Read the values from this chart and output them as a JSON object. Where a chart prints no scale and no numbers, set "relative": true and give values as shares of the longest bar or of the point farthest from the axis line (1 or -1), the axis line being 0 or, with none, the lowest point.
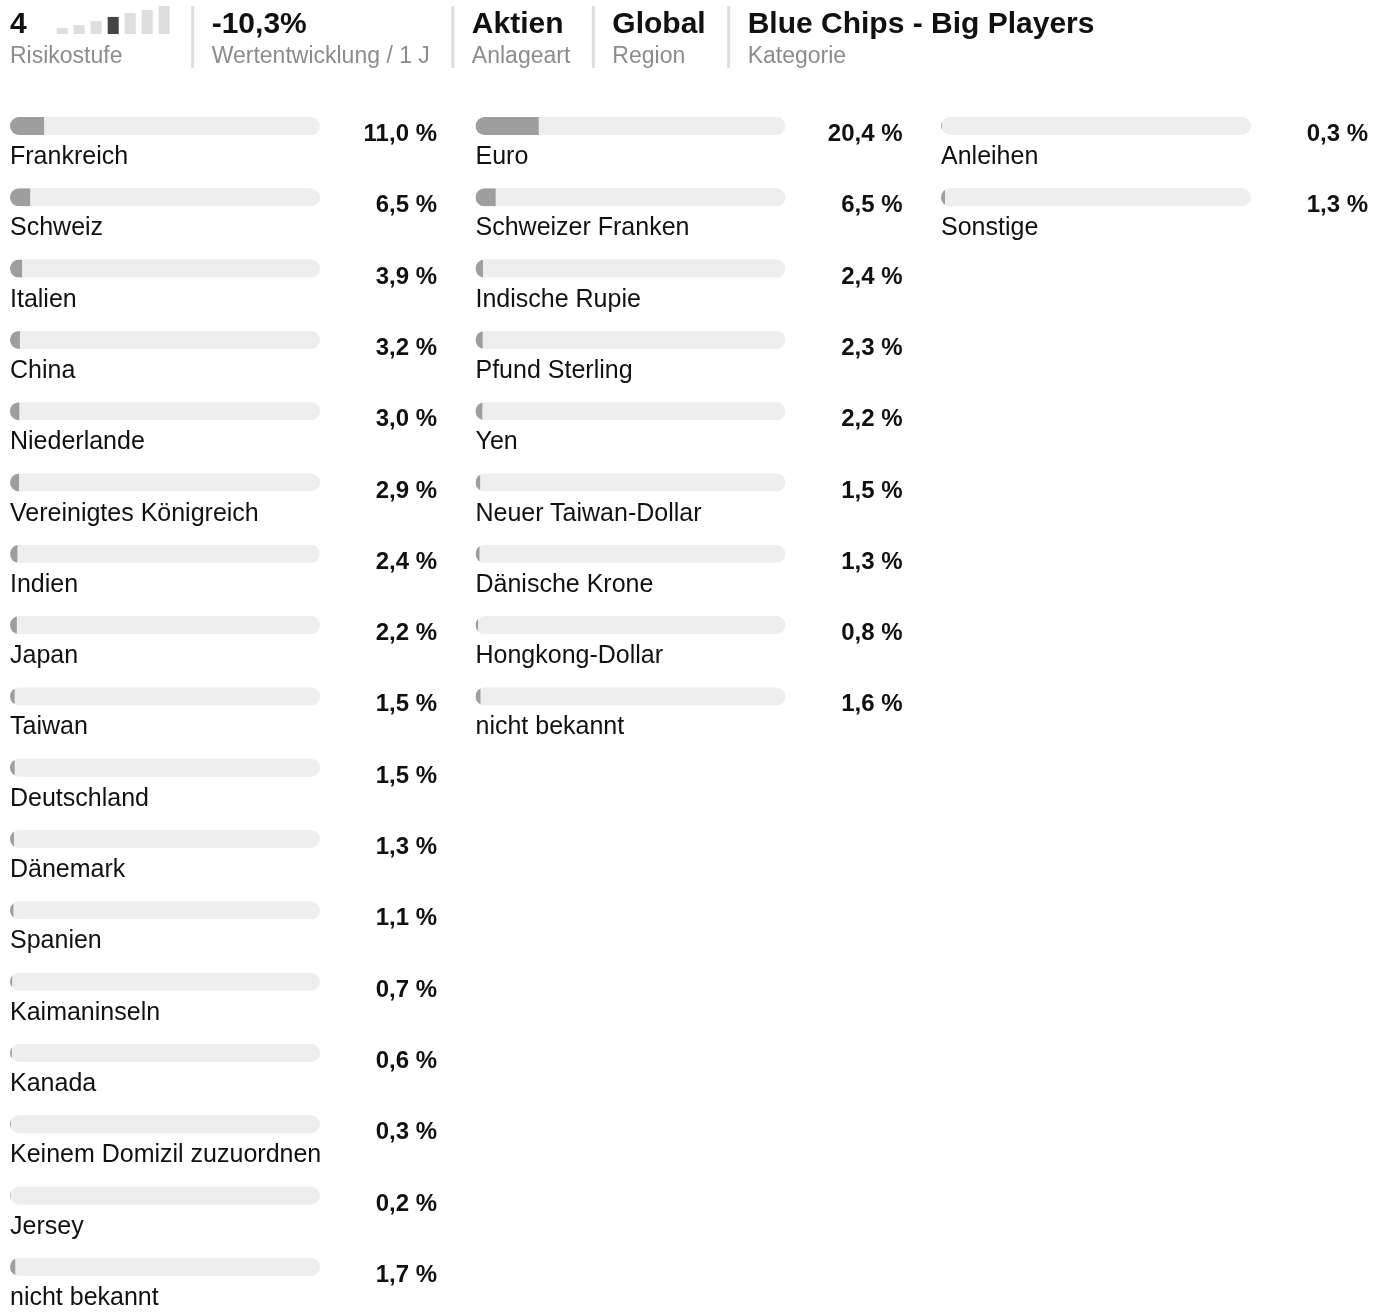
{
  "chart_data": [
    {
      "type": "other",
      "annotations": [
        "4",
        "Risikostufe",
        "-10,3%",
        "Wertentwicklung / 1 J",
        "Aktien",
        "Anlageart",
        "Global",
        "Region",
        "Blue Chips - Big Players",
        "Kategorie"
      ]
    },
    {
      "type": "bar",
      "relative": true,
      "tick_labels": false,
      "categories": [
        null,
        null,
        null,
        null,
        null,
        null,
        null
      ],
      "values": [
        0.21,
        0.32,
        0.46,
        0.61,
        0.75,
        0.86,
        1
      ],
      "colors": [
        "#dedede",
        "#dedede",
        "#dedede",
        "#444444",
        "#dedede",
        "#dedede",
        "#dedede"
      ]
    },
    {
      "type": "bar",
      "orientation": "horizontal",
      "tick_labels": "y",
      "xlim": [
        0,
        100
      ],
      "color": "#9e9e9e",
      "categories": [
        "Frankreich",
        "Schweiz",
        "Italien",
        "China",
        "Niederlande",
        "Vereinigtes Königreich",
        "Indien",
        "Japan",
        "Taiwan",
        "Deutschland",
        "Dänemark",
        "Spanien",
        "Kaimaninseln",
        "Kanada",
        "Keinem Domizil zuzuordnen",
        "Jersey",
        "nicht bekannt"
      ],
      "values": [
        11.0,
        6.5,
        3.9,
        3.2,
        3.0,
        2.9,
        2.4,
        2.2,
        1.5,
        1.5,
        1.3,
        1.1,
        0.7,
        0.6,
        0.3,
        0.2,
        1.7
      ],
      "value_labels": [
        "11,0 %",
        "6,5 %",
        "3,9 %",
        "3,2 %",
        "3,0 %",
        "2,9 %",
        "2,4 %",
        "2,2 %",
        "1,5 %",
        "1,5 %",
        "1,3 %",
        "1,1 %",
        "0,7 %",
        "0,6 %",
        "0,3 %",
        "0,2 %",
        "1,7 %"
      ]
    },
    {
      "type": "bar",
      "orientation": "horizontal",
      "tick_labels": "y",
      "xlim": [
        0,
        100
      ],
      "color": "#9e9e9e",
      "categories": [
        "Euro",
        "Schweizer Franken",
        "Indische Rupie",
        "Pfund Sterling",
        "Yen",
        "Neuer Taiwan-Dollar",
        "Dänische Krone",
        "Hongkong-Dollar",
        "nicht bekannt"
      ],
      "values": [
        20.4,
        6.5,
        2.4,
        2.3,
        2.2,
        1.5,
        1.3,
        0.8,
        1.6
      ],
      "value_labels": [
        "20,4 %",
        "6,5 %",
        "2,4 %",
        "2,3 %",
        "2,2 %",
        "1,5 %",
        "1,3 %",
        "0,8 %",
        "1,6 %"
      ]
    },
    {
      "type": "bar",
      "orientation": "horizontal",
      "tick_labels": "y",
      "xlim": [
        0,
        100
      ],
      "color": "#9e9e9e",
      "categories": [
        "Anleihen",
        "Sonstige"
      ],
      "values": [
        0.3,
        1.3
      ],
      "value_labels": [
        "0,3 %",
        "1,3 %"
      ]
    }
  ]
}
